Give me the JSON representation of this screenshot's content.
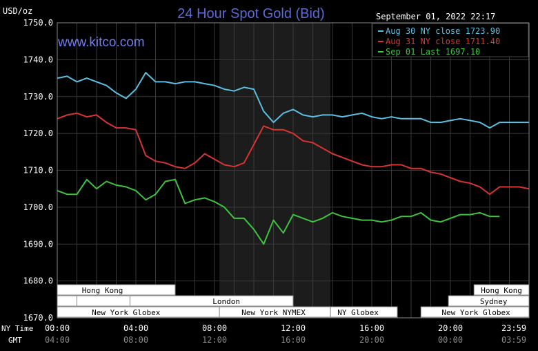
{
  "chart_data": {
    "type": "line",
    "title": "24 Hour Spot Gold (Bid)",
    "watermark": "www.kitco.com",
    "timestamp": "September 01, 2022 22:17",
    "ylabel": "USD/oz",
    "ylim": [
      1670,
      1750
    ],
    "yticks": [
      "1750.0",
      "1740.0",
      "1730.0",
      "1720.0",
      "1710.0",
      "1700.0",
      "1690.0",
      "1680.0",
      "1670.0"
    ],
    "xlim": [
      0,
      24
    ],
    "x_ticks_ny": [
      "00:00",
      "04:00",
      "08:00",
      "12:00",
      "16:00",
      "20:00",
      "23:59"
    ],
    "x_ticks_gmt": [
      "04:00",
      "08:00",
      "12:00",
      "16:00",
      "20:00",
      "00:00",
      "03:59"
    ],
    "row_label_ny": "NY Time",
    "row_label_gmt": "GMT",
    "grid": true,
    "shaded_hours": [
      8.25,
      13.9
    ],
    "legend_position": "top-right",
    "series": [
      {
        "name": "Aug 30 NY close 1723.90",
        "color": "#5bbfe2",
        "x": [
          0,
          0.5,
          1,
          1.5,
          2,
          2.5,
          3,
          3.5,
          4,
          4.5,
          5,
          5.5,
          6,
          6.5,
          7,
          7.5,
          8,
          8.5,
          9,
          9.5,
          10,
          10.5,
          11,
          11.5,
          12,
          12.5,
          13,
          13.5,
          14,
          14.5,
          15,
          15.5,
          16,
          16.5,
          17,
          17.5,
          18,
          18.5,
          19,
          19.5,
          20,
          20.5,
          21,
          21.5,
          22,
          22.5,
          23,
          23.5,
          24
        ],
        "values": [
          1735,
          1735.5,
          1734,
          1735,
          1734,
          1733,
          1731,
          1729.5,
          1732,
          1736.5,
          1734,
          1734,
          1733.5,
          1734,
          1734,
          1733.5,
          1733,
          1732,
          1731.5,
          1732.5,
          1732,
          1726,
          1723,
          1725.5,
          1726.5,
          1725,
          1724.5,
          1725,
          1725,
          1724.5,
          1725,
          1725.5,
          1724.5,
          1724,
          1724.5,
          1724,
          1724,
          1724,
          1723,
          1723,
          1723.5,
          1724,
          1723.5,
          1723,
          1721.5,
          1723,
          1723,
          1723,
          1723
        ]
      },
      {
        "name": "Aug 31 NY close 1711.40",
        "color": "#d83434",
        "x": [
          0,
          0.5,
          1,
          1.5,
          2,
          2.5,
          3,
          3.5,
          4,
          4.5,
          5,
          5.5,
          6,
          6.5,
          7,
          7.5,
          8,
          8.5,
          9,
          9.5,
          10,
          10.5,
          11,
          11.5,
          12,
          12.5,
          13,
          13.5,
          14,
          14.5,
          15,
          15.5,
          16,
          16.5,
          17,
          17.5,
          18,
          18.5,
          19,
          19.5,
          20,
          20.5,
          21,
          21.5,
          22,
          22.5,
          23,
          23.5,
          24
        ],
        "values": [
          1724,
          1725,
          1725.5,
          1724.5,
          1725,
          1723,
          1721.5,
          1721.5,
          1721,
          1714,
          1712.5,
          1712,
          1711,
          1710.5,
          1712,
          1714.5,
          1713,
          1711.5,
          1711,
          1712,
          1717,
          1722,
          1721,
          1721,
          1720,
          1718,
          1717.5,
          1716,
          1714.5,
          1713.5,
          1712.5,
          1711.5,
          1711,
          1711,
          1711.5,
          1711.5,
          1710.5,
          1710.5,
          1709.5,
          1709,
          1708,
          1707,
          1706.5,
          1705.5,
          1703.5,
          1705.5,
          1705.5,
          1705.5,
          1705
        ]
      },
      {
        "name": "Sep 01 Last 1697.10",
        "color": "#3ec43e",
        "x": [
          0,
          0.5,
          1,
          1.5,
          2,
          2.5,
          3,
          3.5,
          4,
          4.5,
          5,
          5.5,
          6,
          6.5,
          7,
          7.5,
          8,
          8.5,
          9,
          9.5,
          10,
          10.5,
          11,
          11.5,
          12,
          12.5,
          13,
          13.5,
          14,
          14.5,
          15,
          15.5,
          16,
          16.5,
          17,
          17.5,
          18,
          18.5,
          19,
          19.5,
          20,
          20.5,
          21,
          21.5,
          22,
          22.5
        ],
        "values": [
          1704.5,
          1703.5,
          1703.5,
          1707.5,
          1705,
          1707,
          1706,
          1705.5,
          1704.5,
          1702,
          1703.5,
          1707,
          1707.5,
          1701,
          1702,
          1702.5,
          1701.5,
          1700,
          1697,
          1697,
          1694,
          1690,
          1696.5,
          1693,
          1698,
          1697,
          1696,
          1697,
          1698.5,
          1697.5,
          1697,
          1696.5,
          1696.5,
          1696,
          1696.5,
          1697.5,
          1697.5,
          1698.5,
          1696.5,
          1696,
          1697,
          1698,
          1698,
          1698.5,
          1697.5,
          1697.5
        ]
      }
    ]
  },
  "sessions": [
    {
      "name": "Hong Kong",
      "row": 1,
      "start": 0,
      "end": 6.0,
      "label_at": 2.3
    },
    {
      "name": "Hong Kong",
      "row": 1,
      "start": 21.2,
      "end": 24,
      "label_at": 22.6
    },
    {
      "name": "",
      "row": 2,
      "start": 0,
      "end": 1.0,
      "label_at": 0.5
    },
    {
      "name": "",
      "row": 2,
      "start": 1.0,
      "end": 3.7,
      "label_at": 2.3
    },
    {
      "name": "London",
      "row": 2,
      "start": 3.7,
      "end": 12.0,
      "label_at": 8.6
    },
    {
      "name": "Sydney",
      "row": 2,
      "start": 19.9,
      "end": 24,
      "label_at": 22.2
    },
    {
      "name": "New York Globex",
      "row": 3,
      "start": 0,
      "end": 8.25,
      "label_at": 3.5
    },
    {
      "name": "New York NYMEX",
      "row": 3,
      "start": 8.25,
      "end": 13.9,
      "label_at": 11.0
    },
    {
      "name": "NY Globex",
      "row": 3,
      "start": 13.9,
      "end": 17.3,
      "label_at": 15.3
    },
    {
      "name": "New York Globex",
      "row": 3,
      "start": 18.5,
      "end": 24,
      "label_at": 21.3
    }
  ]
}
